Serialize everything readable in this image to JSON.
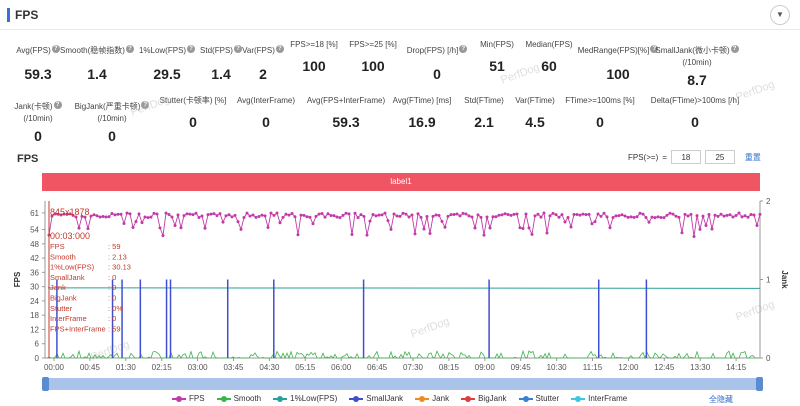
{
  "header": {
    "title": "FPS",
    "collapse_icon": "chevron-down-icon"
  },
  "metrics_row1": [
    {
      "label": "Avg(FPS)",
      "value": "59.3",
      "help": true
    },
    {
      "label": "Smooth(稳帧指数)",
      "value": "1.4",
      "help": true
    },
    {
      "label": "1%Low(FPS)",
      "value": "29.5",
      "help": true
    },
    {
      "label": "Std(FPS)",
      "value": "1.4",
      "help": true
    },
    {
      "label": "Var(FPS)",
      "value": "2",
      "help": true
    },
    {
      "label": "FPS>=18 [%]",
      "value": "100",
      "help": false
    },
    {
      "label": "FPS>=25 [%]",
      "value": "100",
      "help": false
    },
    {
      "label": "Drop(FPS) [/h]",
      "value": "0",
      "help": true
    },
    {
      "label": "Min(FPS)",
      "value": "51",
      "help": false
    },
    {
      "label": "Median(FPS)",
      "value": "60",
      "help": false
    },
    {
      "label": "MedRange(FPS)[%]",
      "value": "100",
      "help": true
    },
    {
      "label": "SmallJank(微小卡顿)",
      "label2": "(/10min)",
      "value": "8.7",
      "help": true
    }
  ],
  "metrics_row2": [
    {
      "label": "Jank(卡顿)",
      "label2": "(/10min)",
      "value": "0",
      "help": true
    },
    {
      "label": "BigJank(严重卡顿)",
      "label2": "(/10min)",
      "value": "0",
      "help": true
    },
    {
      "label": "Stutter(卡顿率) [%]",
      "value": "0",
      "help": false
    },
    {
      "label": "Avg(InterFrame)",
      "value": "0",
      "help": false
    },
    {
      "label": "Avg(FPS+InterFrame)",
      "value": "59.3",
      "help": false
    },
    {
      "label": "Avg(FTime) [ms]",
      "value": "16.9",
      "help": false
    },
    {
      "label": "Std(FTime)",
      "value": "2.1",
      "help": false
    },
    {
      "label": "Var(FTime)",
      "value": "4.5",
      "help": false
    },
    {
      "label": "FTime>=100ms [%]",
      "value": "0",
      "help": false
    },
    {
      "label": "Delta(FTime)>100ms [/h]",
      "value": "0",
      "help": false
    }
  ],
  "watermarks": [
    "PerfDog",
    "PerfDog",
    "PerfDog",
    "PerfDog",
    "PerfDog",
    "PerfDog"
  ],
  "chart_section": {
    "title": "FPS",
    "range_label": "FPS(>=)",
    "range_low": "18",
    "range_high": "25",
    "reset_label": "重置",
    "label_bar": "label1"
  },
  "chart_data": {
    "type": "line",
    "x_ticks": [
      "00:00",
      "00:45",
      "01:30",
      "02:15",
      "03:00",
      "03:45",
      "04:30",
      "05:15",
      "06:00",
      "06:45",
      "07:30",
      "08:15",
      "09:00",
      "09:45",
      "10:30",
      "11:15",
      "12:00",
      "12:45",
      "13:30",
      "14:15"
    ],
    "y_left_ticks": [
      "0",
      "6",
      "12",
      "18",
      "24",
      "30",
      "36",
      "42",
      "48",
      "54",
      "61"
    ],
    "y_right_ticks": [
      "0",
      "1",
      "2"
    ],
    "ylabel_left": "FPS",
    "ylabel_right": "Jank",
    "ylim_left": [
      0,
      66
    ],
    "ylim_right": [
      0,
      2
    ],
    "series": [
      {
        "name": "FPS",
        "color": "#c23aa9",
        "avg": 59.3,
        "min": 51
      },
      {
        "name": "Smooth",
        "color": "#3bb54a",
        "avg": 1.4
      },
      {
        "name": "1%Low(FPS)",
        "color": "#2aa198",
        "value": 29.5
      },
      {
        "name": "SmallJank",
        "color": "#3f4fd1",
        "events_sec": [
          15,
          85,
          97,
          120,
          153,
          158,
          230,
          288,
          401,
          559,
          697,
          757
        ]
      },
      {
        "name": "Jank",
        "color": "#f08a24",
        "events_sec": []
      },
      {
        "name": "BigJank",
        "color": "#e03c3c",
        "events_sec": []
      },
      {
        "name": "Stutter",
        "color": "#3d7fd3",
        "events_sec": []
      },
      {
        "name": "InterFrame",
        "color": "#3fc6e0",
        "avg": 0
      }
    ],
    "tooltip": {
      "resolution": "845x1878",
      "time": "00:03:000",
      "rows": [
        {
          "k": "FPS",
          "v": ": 59"
        },
        {
          "k": "Smooth",
          "v": ": 2.13"
        },
        {
          "k": "1%Low(FPS)",
          "v": ": 30.13"
        },
        {
          "k": "SmallJank",
          "v": ": 0"
        },
        {
          "k": "Jank",
          "v": ": 0"
        },
        {
          "k": "BigJank",
          "v": ": 0"
        },
        {
          "k": "Stutter",
          "v": ": 0%"
        },
        {
          "k": "InterFrame",
          "v": ": 0"
        },
        {
          "k": "FPS+InterFrame",
          "v": ": 59"
        }
      ]
    }
  },
  "legend": {
    "items": [
      {
        "label": "FPS",
        "color": "#c23aa9"
      },
      {
        "label": "Smooth",
        "color": "#3bb54a"
      },
      {
        "label": "1%Low(FPS)",
        "color": "#2aa198"
      },
      {
        "label": "SmallJank",
        "color": "#3f4fd1"
      },
      {
        "label": "Jank",
        "color": "#f08a24"
      },
      {
        "label": "BigJank",
        "color": "#e03c3c"
      },
      {
        "label": "Stutter",
        "color": "#3d7fd3"
      },
      {
        "label": "InterFrame",
        "color": "#3fc6e0"
      }
    ],
    "select_all": "全隐藏"
  }
}
